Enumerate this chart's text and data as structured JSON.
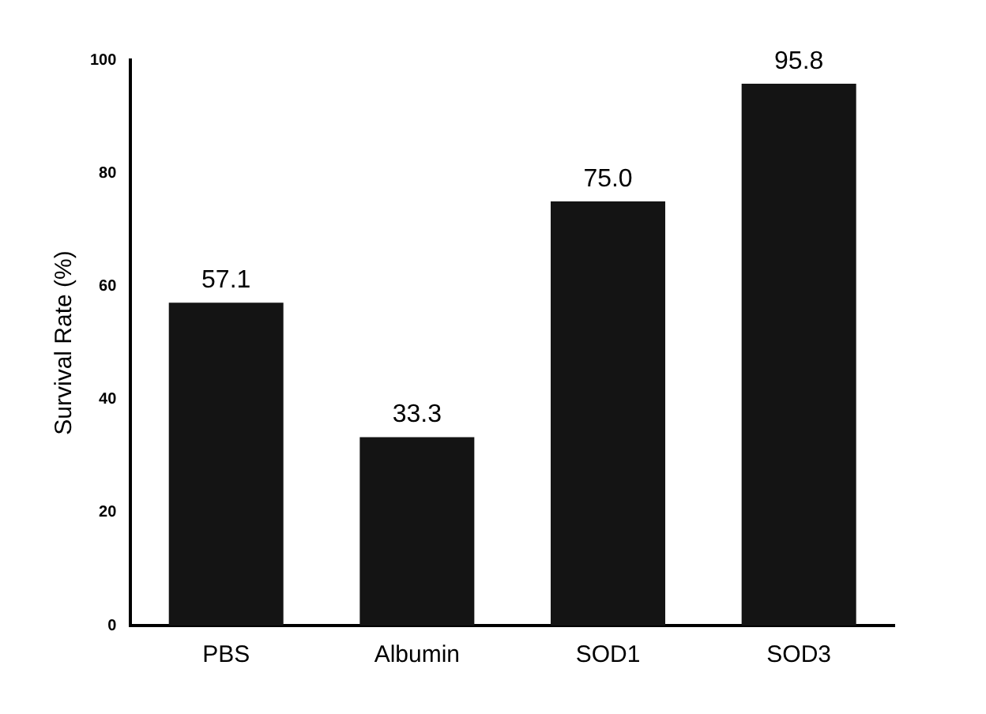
{
  "chart_data": {
    "type": "bar",
    "ylabel": "Survival Rate (%)",
    "categories": [
      "PBS",
      "Albumin",
      "SOD1",
      "SOD3"
    ],
    "values": [
      57.1,
      33.3,
      75.0,
      95.8
    ],
    "color": "#141414",
    "ylim": [
      0,
      100
    ],
    "yticks": [
      0,
      20,
      40,
      60,
      80,
      100
    ],
    "grid": false,
    "value_labels": [
      "57.1",
      "33.3",
      "75.0",
      "95.8"
    ]
  }
}
